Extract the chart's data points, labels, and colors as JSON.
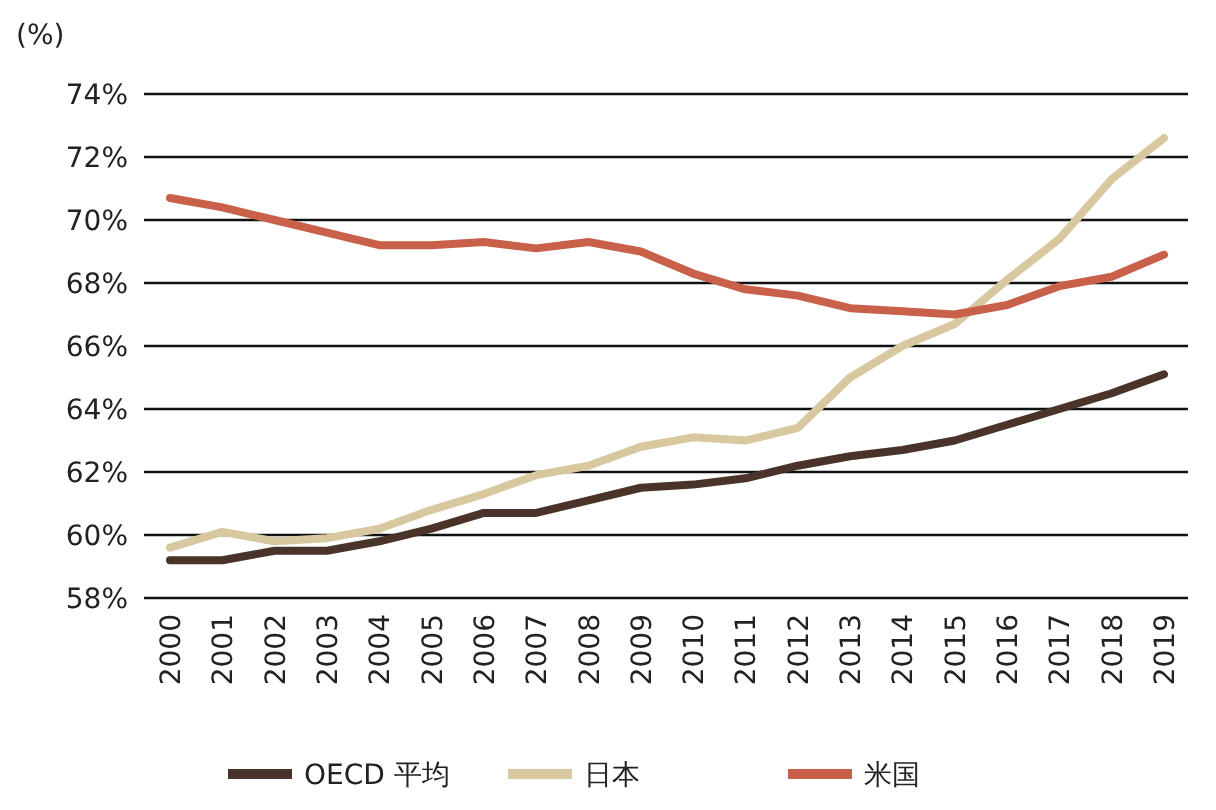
{
  "chart_data": {
    "type": "line",
    "ylabel": "(%)",
    "categories": [
      "2000",
      "2001",
      "2002",
      "2003",
      "2004",
      "2005",
      "2006",
      "2007",
      "2008",
      "2009",
      "2010",
      "2011",
      "2012",
      "2013",
      "2014",
      "2015",
      "2016",
      "2017",
      "2018",
      "2019"
    ],
    "series": [
      {
        "name": "OECD 平均",
        "color": "#4a3328",
        "values": [
          59.2,
          59.2,
          59.5,
          59.5,
          59.8,
          60.2,
          60.7,
          60.7,
          61.1,
          61.5,
          61.6,
          61.8,
          62.2,
          62.5,
          62.7,
          63.0,
          63.5,
          64.0,
          64.5,
          65.1
        ]
      },
      {
        "name": "日本",
        "color": "#d8c8a0",
        "values": [
          59.6,
          60.1,
          59.8,
          59.9,
          60.2,
          60.8,
          61.3,
          61.9,
          62.2,
          62.8,
          63.1,
          63.0,
          63.4,
          65.0,
          66.0,
          66.7,
          68.1,
          69.4,
          71.3,
          72.6
        ]
      },
      {
        "name": "米国",
        "color": "#c8604a",
        "values": [
          70.7,
          70.4,
          70.0,
          69.6,
          69.2,
          69.2,
          69.3,
          69.1,
          69.3,
          69.0,
          68.3,
          67.8,
          67.6,
          67.2,
          67.1,
          67.0,
          67.3,
          67.9,
          68.2,
          68.9
        ]
      }
    ],
    "ylim": [
      58,
      74
    ],
    "yticks": [
      {
        "value": 58,
        "label": "58%"
      },
      {
        "value": 60,
        "label": "60%"
      },
      {
        "value": 62,
        "label": "62%"
      },
      {
        "value": 64,
        "label": "64%"
      },
      {
        "value": 66,
        "label": "66%"
      },
      {
        "value": 68,
        "label": "68%"
      },
      {
        "value": 70,
        "label": "70%"
      },
      {
        "value": 72,
        "label": "72%"
      },
      {
        "value": 74,
        "label": "74%"
      }
    ],
    "grid": "y",
    "legend": "bottom",
    "marker": "none",
    "line_style": "solid"
  }
}
